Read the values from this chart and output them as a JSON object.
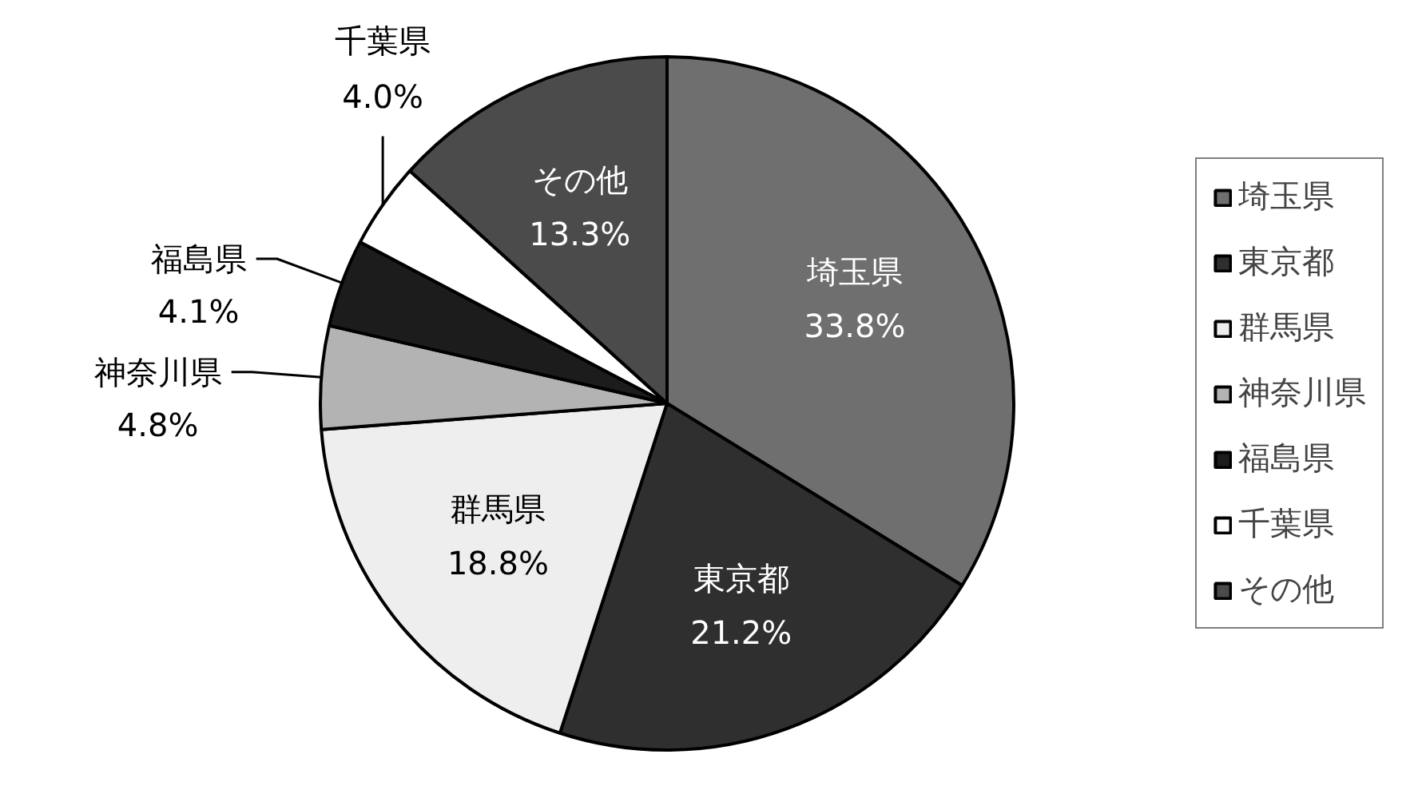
{
  "chart_data": {
    "type": "pie",
    "categories": [
      "埼玉県",
      "東京都",
      "群馬県",
      "神奈川県",
      "福島県",
      "千葉県",
      "その他"
    ],
    "values": [
      33.8,
      21.2,
      18.8,
      4.8,
      4.1,
      4.0,
      13.3
    ],
    "colors": [
      "#6f6f6f",
      "#2f2f2f",
      "#eeeeee",
      "#b3b3b3",
      "#1c1c1c",
      "#ffffff",
      "#4b4b4b"
    ],
    "value_labels": [
      "33.8%",
      "21.2%",
      "18.8%",
      "4.8%",
      "4.1%",
      "4.0%",
      "13.3%"
    ],
    "legend": "right"
  }
}
